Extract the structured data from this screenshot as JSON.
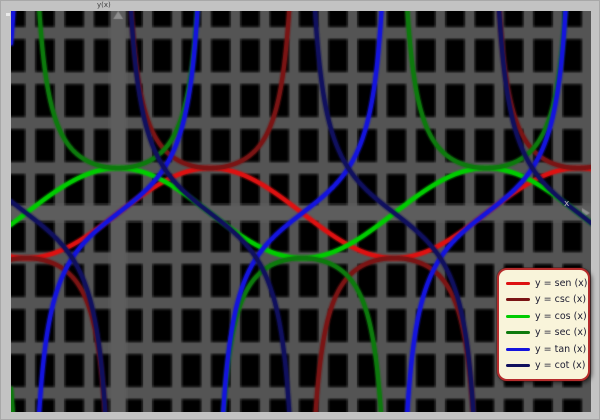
{
  "colors": {
    "frame": "#c3c3c3",
    "plot_background": "#000000",
    "grid": "#545454",
    "axis": "#5d5d5d",
    "legend_background": "#f9f4da",
    "legend_border": "#b52b2b",
    "legend_text": "#1b1b30"
  },
  "chart_data": {
    "type": "line",
    "title": "",
    "xlabel": "x",
    "ylabel": "y(x)",
    "xlim": [
      -1.83,
      8.07
    ],
    "ylim": [
      -4.42,
      4.49
    ],
    "x_grid_step": 0.5,
    "y_grid_step": 1,
    "grid": true,
    "legend_position": "bottom-right",
    "series": [
      {
        "name": "sen",
        "fn": "sin",
        "legend_label": "y = sen (x)",
        "color": "#dd1111"
      },
      {
        "name": "csc",
        "fn": "csc",
        "legend_label": "y = csc (x)",
        "color": "#7a1414"
      },
      {
        "name": "cos",
        "fn": "cos",
        "legend_label": "y = cos (x)",
        "color": "#00cc00"
      },
      {
        "name": "sec",
        "fn": "sec",
        "legend_label": "y = sec (x)",
        "color": "#0d7a0d"
      },
      {
        "name": "tan",
        "fn": "tan",
        "legend_label": "y = tan (x)",
        "color": "#1414dd"
      },
      {
        "name": "cot",
        "fn": "cot",
        "legend_label": "y = cot (x)",
        "color": "#10105e"
      }
    ]
  }
}
